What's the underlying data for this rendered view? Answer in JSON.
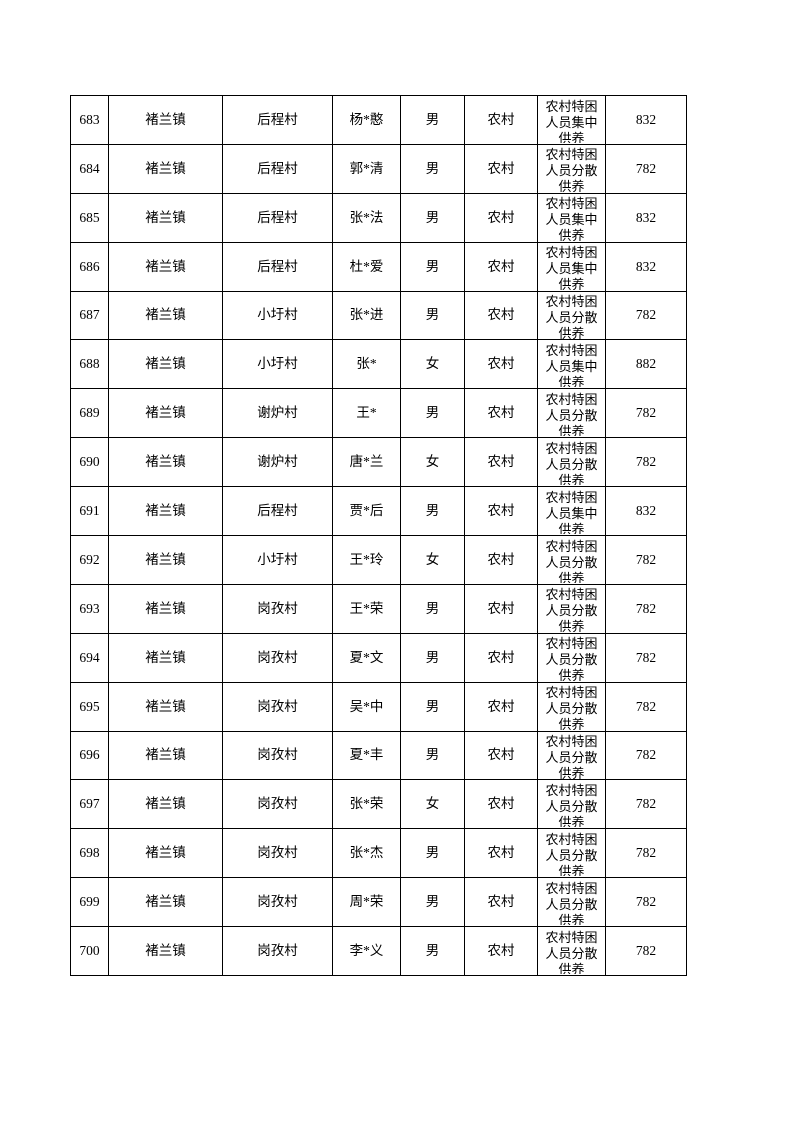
{
  "page": {
    "background_color": "#ffffff",
    "border_color": "#000000",
    "text_color": "#000000"
  },
  "table": {
    "rows": [
      {
        "seq": "683",
        "town": "褚兰镇",
        "village": "后程村",
        "name": "杨*憨",
        "gender": "男",
        "area": "农村",
        "category": "农村特困人员集中供养",
        "amount": "832"
      },
      {
        "seq": "684",
        "town": "褚兰镇",
        "village": "后程村",
        "name": "郭*清",
        "gender": "男",
        "area": "农村",
        "category": "农村特困人员分散供养",
        "amount": "782"
      },
      {
        "seq": "685",
        "town": "褚兰镇",
        "village": "后程村",
        "name": "张*法",
        "gender": "男",
        "area": "农村",
        "category": "农村特困人员集中供养",
        "amount": "832"
      },
      {
        "seq": "686",
        "town": "褚兰镇",
        "village": "后程村",
        "name": "杜*爱",
        "gender": "男",
        "area": "农村",
        "category": "农村特困人员集中供养",
        "amount": "832"
      },
      {
        "seq": "687",
        "town": "褚兰镇",
        "village": "小圩村",
        "name": "张*进",
        "gender": "男",
        "area": "农村",
        "category": "农村特困人员分散供养",
        "amount": "782"
      },
      {
        "seq": "688",
        "town": "褚兰镇",
        "village": "小圩村",
        "name": "张*",
        "gender": "女",
        "area": "农村",
        "category": "农村特困人员集中供养",
        "amount": "882"
      },
      {
        "seq": "689",
        "town": "褚兰镇",
        "village": "谢炉村",
        "name": "王*",
        "gender": "男",
        "area": "农村",
        "category": "农村特困人员分散供养",
        "amount": "782"
      },
      {
        "seq": "690",
        "town": "褚兰镇",
        "village": "谢炉村",
        "name": "唐*兰",
        "gender": "女",
        "area": "农村",
        "category": "农村特困人员分散供养",
        "amount": "782"
      },
      {
        "seq": "691",
        "town": "褚兰镇",
        "village": "后程村",
        "name": "贾*后",
        "gender": "男",
        "area": "农村",
        "category": "农村特困人员集中供养",
        "amount": "832"
      },
      {
        "seq": "692",
        "town": "褚兰镇",
        "village": "小圩村",
        "name": "王*玲",
        "gender": "女",
        "area": "农村",
        "category": "农村特困人员分散供养",
        "amount": "782"
      },
      {
        "seq": "693",
        "town": "褚兰镇",
        "village": "岗孜村",
        "name": "王*荣",
        "gender": "男",
        "area": "农村",
        "category": "农村特困人员分散供养",
        "amount": "782"
      },
      {
        "seq": "694",
        "town": "褚兰镇",
        "village": "岗孜村",
        "name": "夏*文",
        "gender": "男",
        "area": "农村",
        "category": "农村特困人员分散供养",
        "amount": "782"
      },
      {
        "seq": "695",
        "town": "褚兰镇",
        "village": "岗孜村",
        "name": "吴*中",
        "gender": "男",
        "area": "农村",
        "category": "农村特困人员分散供养",
        "amount": "782"
      },
      {
        "seq": "696",
        "town": "褚兰镇",
        "village": "岗孜村",
        "name": "夏*丰",
        "gender": "男",
        "area": "农村",
        "category": "农村特困人员分散供养",
        "amount": "782"
      },
      {
        "seq": "697",
        "town": "褚兰镇",
        "village": "岗孜村",
        "name": "张*荣",
        "gender": "女",
        "area": "农村",
        "category": "农村特困人员分散供养",
        "amount": "782"
      },
      {
        "seq": "698",
        "town": "褚兰镇",
        "village": "岗孜村",
        "name": "张*杰",
        "gender": "男",
        "area": "农村",
        "category": "农村特困人员分散供养",
        "amount": "782"
      },
      {
        "seq": "699",
        "town": "褚兰镇",
        "village": "岗孜村",
        "name": "周*荣",
        "gender": "男",
        "area": "农村",
        "category": "农村特困人员分散供养",
        "amount": "782"
      },
      {
        "seq": "700",
        "town": "褚兰镇",
        "village": "岗孜村",
        "name": "李*义",
        "gender": "男",
        "area": "农村",
        "category": "农村特困人员分散供养",
        "amount": "782"
      }
    ]
  }
}
